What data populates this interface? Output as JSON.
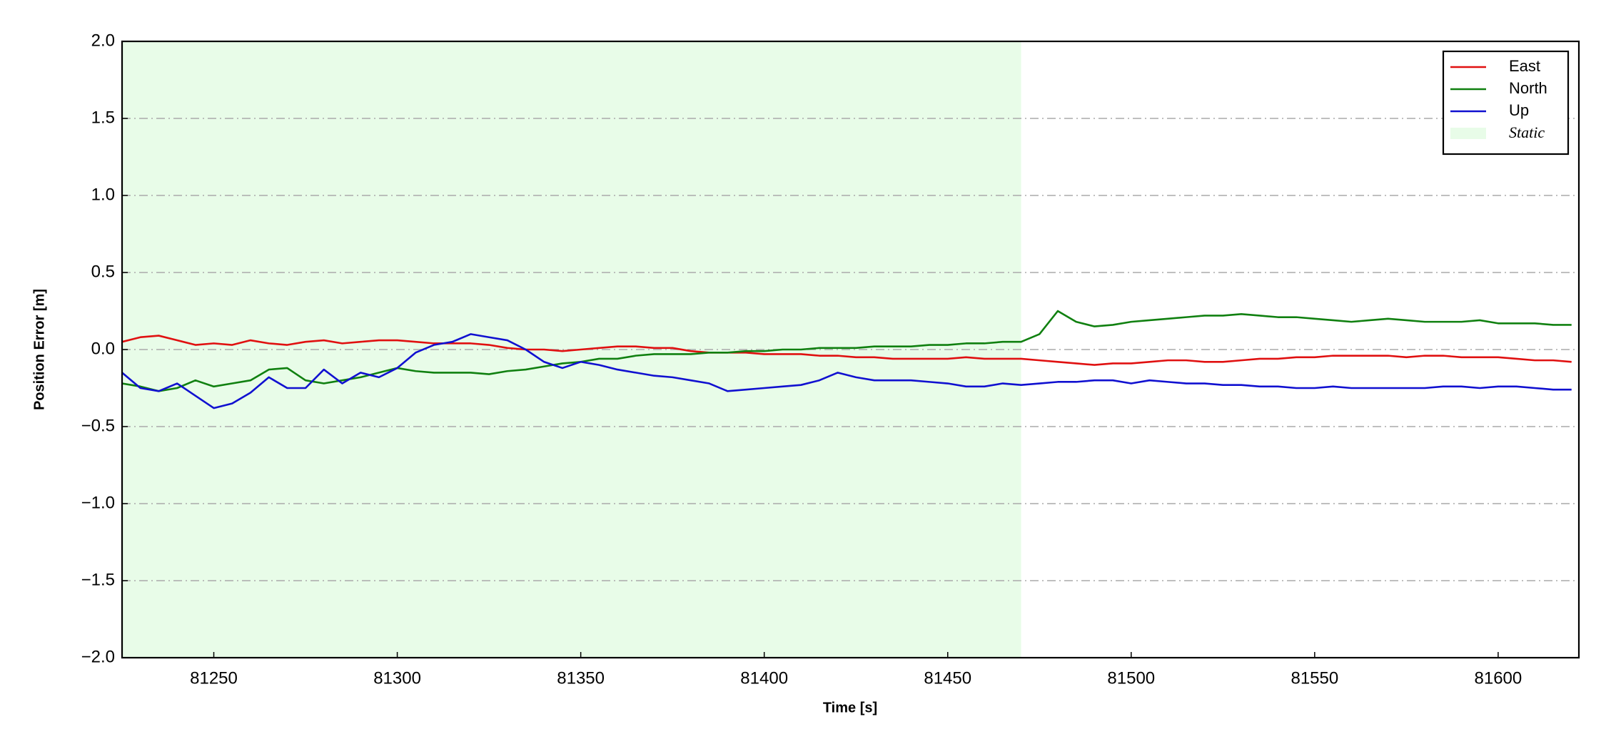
{
  "chart_data": {
    "type": "line",
    "xlabel": "Time [s]",
    "ylabel": "Position Error [m]",
    "xlim": [
      81225,
      81622
    ],
    "ylim": [
      -2,
      2
    ],
    "xticks": [
      81250,
      81300,
      81350,
      81400,
      81450,
      81500,
      81550,
      81600
    ],
    "yticks": [
      {
        "value": -2,
        "label": "−2.0"
      },
      {
        "value": -1.5,
        "label": "−1.5"
      },
      {
        "value": -1,
        "label": "−1.0"
      },
      {
        "value": -0.5,
        "label": "−0.5"
      },
      {
        "value": 0,
        "label": "0.0"
      },
      {
        "value": 0.5,
        "label": "0.5"
      },
      {
        "value": 1,
        "label": "1.0"
      },
      {
        "value": 1.5,
        "label": "1.5"
      },
      {
        "value": 2,
        "label": "2.0"
      }
    ],
    "grid": true,
    "legend": "upper right",
    "static_span": [
      81225,
      81470
    ],
    "static_label": "Static",
    "static_color": "#e8fce8",
    "x": [
      81225,
      81230,
      81235,
      81240,
      81245,
      81250,
      81255,
      81260,
      81265,
      81270,
      81275,
      81280,
      81285,
      81290,
      81295,
      81300,
      81305,
      81310,
      81315,
      81320,
      81325,
      81330,
      81335,
      81340,
      81345,
      81350,
      81355,
      81360,
      81365,
      81370,
      81375,
      81380,
      81385,
      81390,
      81395,
      81400,
      81405,
      81410,
      81415,
      81420,
      81425,
      81430,
      81435,
      81440,
      81445,
      81450,
      81455,
      81460,
      81465,
      81470,
      81475,
      81480,
      81485,
      81490,
      81495,
      81500,
      81505,
      81510,
      81515,
      81520,
      81525,
      81530,
      81535,
      81540,
      81545,
      81550,
      81555,
      81560,
      81565,
      81570,
      81575,
      81580,
      81585,
      81590,
      81595,
      81600,
      81605,
      81610,
      81615,
      81620
    ],
    "series": [
      {
        "name": "East",
        "color": "#e01010",
        "values": [
          0.05,
          0.08,
          0.09,
          0.06,
          0.03,
          0.04,
          0.03,
          0.06,
          0.04,
          0.03,
          0.05,
          0.06,
          0.04,
          0.05,
          0.06,
          0.06,
          0.05,
          0.04,
          0.04,
          0.04,
          0.03,
          0.01,
          0.0,
          0.0,
          -0.01,
          0.0,
          0.01,
          0.02,
          0.02,
          0.01,
          0.01,
          -0.01,
          -0.02,
          -0.02,
          -0.02,
          -0.03,
          -0.03,
          -0.03,
          -0.04,
          -0.04,
          -0.05,
          -0.05,
          -0.06,
          -0.06,
          -0.06,
          -0.06,
          -0.05,
          -0.06,
          -0.06,
          -0.06,
          -0.07,
          -0.08,
          -0.09,
          -0.1,
          -0.09,
          -0.09,
          -0.08,
          -0.07,
          -0.07,
          -0.08,
          -0.08,
          -0.07,
          -0.06,
          -0.06,
          -0.05,
          -0.05,
          -0.04,
          -0.04,
          -0.04,
          -0.04,
          -0.05,
          -0.04,
          -0.04,
          -0.05,
          -0.05,
          -0.05,
          -0.06,
          -0.07,
          -0.07,
          -0.08
        ]
      },
      {
        "name": "North",
        "color": "#108010",
        "values": [
          -0.22,
          -0.24,
          -0.27,
          -0.25,
          -0.2,
          -0.24,
          -0.22,
          -0.2,
          -0.13,
          -0.12,
          -0.2,
          -0.22,
          -0.2,
          -0.18,
          -0.15,
          -0.12,
          -0.14,
          -0.15,
          -0.15,
          -0.15,
          -0.16,
          -0.14,
          -0.13,
          -0.11,
          -0.09,
          -0.08,
          -0.06,
          -0.06,
          -0.04,
          -0.03,
          -0.03,
          -0.03,
          -0.02,
          -0.02,
          -0.01,
          -0.01,
          0.0,
          0.0,
          0.01,
          0.01,
          0.01,
          0.02,
          0.02,
          0.02,
          0.03,
          0.03,
          0.04,
          0.04,
          0.05,
          0.05,
          0.1,
          0.25,
          0.18,
          0.15,
          0.16,
          0.18,
          0.19,
          0.2,
          0.21,
          0.22,
          0.22,
          0.23,
          0.22,
          0.21,
          0.21,
          0.2,
          0.19,
          0.18,
          0.19,
          0.2,
          0.19,
          0.18,
          0.18,
          0.18,
          0.19,
          0.17,
          0.17,
          0.17,
          0.16,
          0.16
        ]
      },
      {
        "name": "Up",
        "color": "#1010d0",
        "values": [
          -0.15,
          -0.25,
          -0.27,
          -0.22,
          -0.3,
          -0.38,
          -0.35,
          -0.28,
          -0.18,
          -0.25,
          -0.25,
          -0.13,
          -0.22,
          -0.15,
          -0.18,
          -0.12,
          -0.02,
          0.03,
          0.05,
          0.1,
          0.08,
          0.06,
          0.0,
          -0.08,
          -0.12,
          -0.08,
          -0.1,
          -0.13,
          -0.15,
          -0.17,
          -0.18,
          -0.2,
          -0.22,
          -0.27,
          -0.26,
          -0.25,
          -0.24,
          -0.23,
          -0.2,
          -0.15,
          -0.18,
          -0.2,
          -0.2,
          -0.2,
          -0.21,
          -0.22,
          -0.24,
          -0.24,
          -0.22,
          -0.23,
          -0.22,
          -0.21,
          -0.21,
          -0.2,
          -0.2,
          -0.22,
          -0.2,
          -0.21,
          -0.22,
          -0.22,
          -0.23,
          -0.23,
          -0.24,
          -0.24,
          -0.25,
          -0.25,
          -0.24,
          -0.25,
          -0.25,
          -0.25,
          -0.25,
          -0.25,
          -0.24,
          -0.24,
          -0.25,
          -0.24,
          -0.24,
          -0.25,
          -0.26,
          -0.26
        ]
      }
    ]
  }
}
